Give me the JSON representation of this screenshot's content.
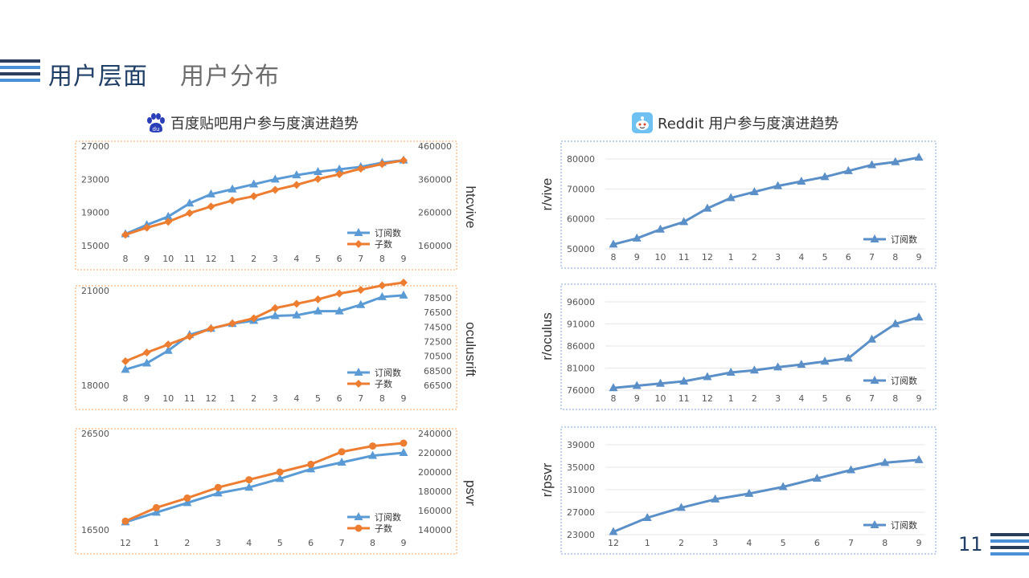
{
  "header": {
    "title": "用户层面",
    "subtitle": "用户分布"
  },
  "page_number": "11",
  "colors": {
    "navy": "#2b3f5c",
    "blue_series": "#5b9bd5",
    "orange_series": "#ed7d31",
    "left_frame": "#f4a460",
    "right_frame": "#7fa7d8",
    "reddit_series": "#5b8fc7"
  },
  "left_section": {
    "title": "百度贴吧用户参与度演进趋势",
    "icon": "baidu-paw-icon"
  },
  "right_section": {
    "title": "Reddit 用户参与度演进趋势",
    "icon": "reddit-alien-icon"
  },
  "chart_data": [
    {
      "id": "htcvive",
      "type": "line",
      "panel": "left",
      "side_label": "htcvive",
      "categories": [
        "8",
        "9",
        "10",
        "11",
        "12",
        "1",
        "2",
        "3",
        "4",
        "5",
        "6",
        "7",
        "8",
        "9"
      ],
      "y_left": {
        "min": 15000,
        "max": 27000,
        "ticks": [
          "15000",
          "19000",
          "23000",
          "27000"
        ]
      },
      "y_right": {
        "min": 160000,
        "max": 460000,
        "ticks": [
          "160000",
          "260000",
          "360000",
          "460000"
        ]
      },
      "series": [
        {
          "name": "订阅数",
          "axis": "left",
          "color": "#5b9bd5",
          "marker": "triangle",
          "values": [
            16400,
            17500,
            18500,
            20100,
            21200,
            21800,
            22400,
            23000,
            23500,
            23900,
            24200,
            24500,
            25000,
            25300
          ]
        },
        {
          "name": "子数",
          "axis": "right",
          "color": "#ed7d31",
          "marker": "diamond",
          "values": [
            193000,
            214000,
            232000,
            258000,
            278000,
            296000,
            309000,
            328000,
            343000,
            361000,
            375000,
            392000,
            406000,
            417000
          ]
        }
      ]
    },
    {
      "id": "oculusrift",
      "type": "line",
      "panel": "left",
      "side_label": "oculusrift",
      "categories": [
        "8",
        "9",
        "10",
        "11",
        "12",
        "1",
        "2",
        "3",
        "4",
        "5",
        "6",
        "7",
        "8",
        "9"
      ],
      "y_left": {
        "min": 18000,
        "max": 21000,
        "ticks": [
          "18000",
          "21000"
        ]
      },
      "y_right": {
        "min": 66500,
        "max": 79500,
        "ticks": [
          "66500",
          "68500",
          "70500",
          "72500",
          "74500",
          "76500",
          "78500"
        ]
      },
      "series": [
        {
          "name": "订阅数",
          "axis": "left",
          "color": "#5b9bd5",
          "marker": "triangle",
          "values": [
            18500,
            18700,
            19100,
            19600,
            19800,
            19950,
            20050,
            20200,
            20220,
            20350,
            20350,
            20550,
            20800,
            20850
          ]
        },
        {
          "name": "子数",
          "axis": "right",
          "color": "#ed7d31",
          "marker": "diamond",
          "values": [
            69800,
            71000,
            72100,
            73200,
            74300,
            75000,
            75700,
            77100,
            77700,
            78300,
            79100,
            79600,
            80200,
            80600
          ]
        }
      ]
    },
    {
      "id": "psvr",
      "type": "line",
      "panel": "left",
      "side_label": "psvr",
      "categories": [
        "12",
        "1",
        "2",
        "3",
        "4",
        "5",
        "6",
        "7",
        "8",
        "9"
      ],
      "y_left": {
        "min": 16500,
        "max": 26500,
        "ticks": [
          "16500",
          "26500"
        ]
      },
      "y_right": {
        "min": 140000,
        "max": 240000,
        "ticks": [
          "140000",
          "160000",
          "180000",
          "200000",
          "220000",
          "240000"
        ]
      },
      "series": [
        {
          "name": "订阅数",
          "axis": "left",
          "color": "#5b9bd5",
          "marker": "triangle",
          "values": [
            17300,
            18300,
            19300,
            20300,
            20900,
            21800,
            22800,
            23500,
            24200,
            24500
          ]
        },
        {
          "name": "子数",
          "axis": "right",
          "color": "#ed7d31",
          "marker": "circle",
          "values": [
            149000,
            163000,
            173000,
            184000,
            192000,
            200000,
            208000,
            221000,
            227000,
            230000
          ]
        }
      ]
    },
    {
      "id": "r-vive",
      "type": "line",
      "panel": "right",
      "side_label": "r/vive",
      "categories": [
        "8",
        "9",
        "10",
        "11",
        "12",
        "1",
        "2",
        "3",
        "4",
        "5",
        "6",
        "7",
        "8",
        "9"
      ],
      "y_left": {
        "min": 50000,
        "max": 80000,
        "ticks": [
          "50000",
          "60000",
          "70000",
          "80000"
        ]
      },
      "series": [
        {
          "name": "订阅数",
          "axis": "left",
          "color": "#5b8fc7",
          "marker": "triangle",
          "values": [
            51500,
            53500,
            56500,
            59000,
            63500,
            67000,
            69000,
            71000,
            72500,
            74000,
            76000,
            78000,
            79000,
            80500
          ]
        }
      ]
    },
    {
      "id": "r-oculus",
      "type": "line",
      "panel": "right",
      "side_label": "r/oculus",
      "categories": [
        "8",
        "9",
        "10",
        "11",
        "12",
        "1",
        "2",
        "3",
        "4",
        "5",
        "6",
        "7",
        "8",
        "9"
      ],
      "y_left": {
        "min": 76000,
        "max": 96000,
        "ticks": [
          "76000",
          "81000",
          "86000",
          "91000",
          "96000"
        ]
      },
      "series": [
        {
          "name": "订阅数",
          "axis": "left",
          "color": "#5b8fc7",
          "marker": "triangle",
          "values": [
            76500,
            77000,
            77500,
            78000,
            79000,
            80000,
            80500,
            81200,
            81800,
            82500,
            83200,
            87500,
            91000,
            92500
          ]
        }
      ]
    },
    {
      "id": "r-psvr",
      "type": "line",
      "panel": "right",
      "side_label": "r/psvr",
      "categories": [
        "12",
        "1",
        "2",
        "3",
        "4",
        "5",
        "6",
        "7",
        "8",
        "9"
      ],
      "y_left": {
        "min": 23000,
        "max": 39000,
        "ticks": [
          "23000",
          "27000",
          "31000",
          "35000",
          "39000"
        ]
      },
      "series": [
        {
          "name": "订阅数",
          "axis": "left",
          "color": "#5b8fc7",
          "marker": "triangle",
          "values": [
            23500,
            26000,
            27800,
            29300,
            30300,
            31500,
            33000,
            34500,
            35800,
            36300
          ]
        }
      ]
    }
  ]
}
